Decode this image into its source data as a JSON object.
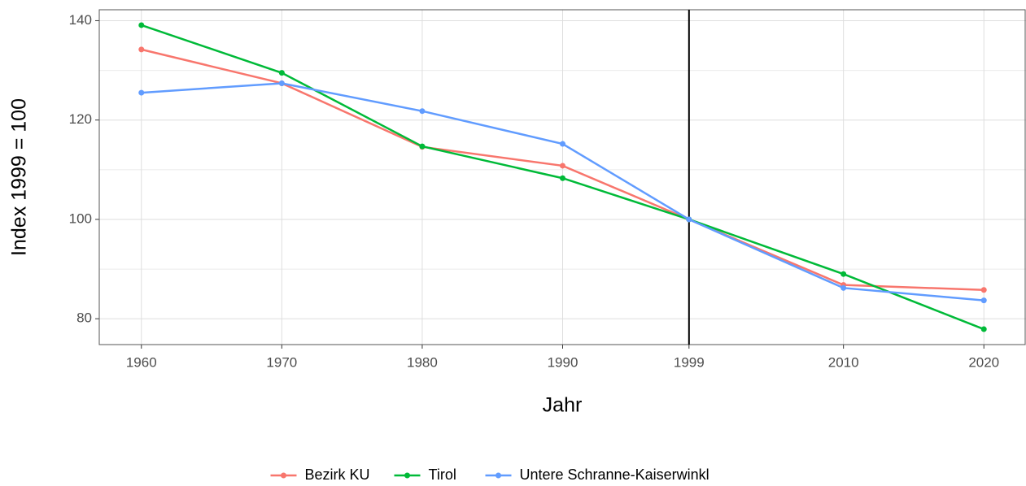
{
  "chart_data": {
    "type": "line",
    "x_label": "Jahr",
    "y_label": "Index 1999 = 100",
    "x": [
      1960,
      1970,
      1980,
      1990,
      1999,
      2010,
      2020
    ],
    "series": [
      {
        "name": "Bezirk KU",
        "color": "#F8766D",
        "values": [
          134.2,
          127.4,
          114.6,
          110.8,
          100,
          86.8,
          85.8
        ]
      },
      {
        "name": "Tirol",
        "color": "#00BA38",
        "values": [
          139.1,
          129.5,
          114.7,
          108.3,
          100,
          89.0,
          77.9
        ]
      },
      {
        "name": "Untere Schranne-Kaiserwinkl",
        "color": "#619CFF",
        "values": [
          125.5,
          127.4,
          121.8,
          115.2,
          100,
          86.2,
          83.7
        ]
      }
    ],
    "xlim": [
      1957,
      2023
    ],
    "xticks": [
      1960,
      1970,
      1980,
      1990,
      1999,
      2010,
      2020
    ],
    "ylim": [
      74.8,
      142.2
    ],
    "yticks": [
      80,
      100,
      120,
      140
    ],
    "y_minor_ticks": [
      90,
      110,
      130
    ],
    "vline": 1999,
    "grid": true,
    "legend": "bottom"
  }
}
